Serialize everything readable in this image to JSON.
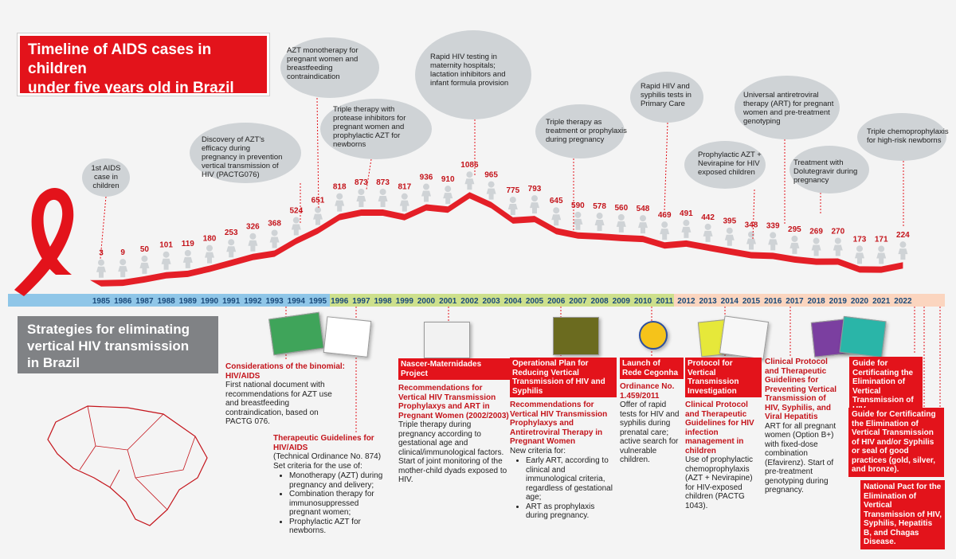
{
  "title": {
    "line1": "Timeline of AIDS cases in children",
    "line2": "under five years old in Brazil"
  },
  "strategies_title": {
    "line1": "Strategies for eliminating",
    "line2": "vertical HIV  transmission",
    "line3": "in Brazil"
  },
  "chart_data": {
    "type": "bar",
    "categories": [
      "1985",
      "1986",
      "1987",
      "1988",
      "1989",
      "1990",
      "1991",
      "1992",
      "1993",
      "1994",
      "1995",
      "1996",
      "1997",
      "1998",
      "1999",
      "2000",
      "2001",
      "2002",
      "2003",
      "2004",
      "2005",
      "2006",
      "2007",
      "2008",
      "2009",
      "2010",
      "2011",
      "2012",
      "2013",
      "2014",
      "2015",
      "2016",
      "2017",
      "2018",
      "2019",
      "2020",
      "2021",
      "2022"
    ],
    "values": [
      3,
      9,
      50,
      101,
      119,
      180,
      253,
      326,
      368,
      524,
      651,
      818,
      873,
      873,
      817,
      936,
      910,
      1086,
      965,
      775,
      793,
      645,
      590,
      578,
      560,
      548,
      469,
      491,
      442,
      395,
      348,
      339,
      295,
      269,
      270,
      173,
      171,
      224
    ],
    "ylim": [
      0,
      1200
    ]
  },
  "bubbles": [
    {
      "id": "b1",
      "lines": [
        "1st AIDS",
        "case in",
        "children"
      ]
    },
    {
      "id": "b2",
      "lines": [
        "Discovery of AZT's",
        "efficacy during",
        "pregnancy in prevention",
        "vertical transmission of",
        "HIV (PACTG076)"
      ]
    },
    {
      "id": "b3",
      "lines": [
        "AZT monotherapy for",
        "pregnant women and",
        "breastfeeding",
        "contraindication"
      ]
    },
    {
      "id": "b4",
      "lines": [
        "Triple therapy with",
        "protease inhibitors for",
        "pregnant women and",
        "prophylactic AZT for",
        "newborns"
      ]
    },
    {
      "id": "b5",
      "lines": [
        "Rapid HIV testing in",
        "maternity hospitals;",
        "lactation inhibitors and",
        "infant formula provision"
      ]
    },
    {
      "id": "b6",
      "lines": [
        "Triple therapy as",
        "treatment or prophylaxis",
        "during pregnancy"
      ]
    },
    {
      "id": "b7",
      "lines": [
        "Rapid HIV and",
        "syphilis tests in",
        "Primary Care"
      ]
    },
    {
      "id": "b8",
      "lines": [
        "Prophylactic AZT +",
        "Nevirapine for HIV",
        "exposed children"
      ]
    },
    {
      "id": "b9",
      "lines": [
        "Universal antiretroviral",
        "therapy (ART) for pregnant",
        "women and pre-treatment",
        "genotyping"
      ]
    },
    {
      "id": "b10",
      "lines": [
        "Treatment with",
        "Dolutegravir during",
        "pregnancy"
      ]
    },
    {
      "id": "b11",
      "lines": [
        "Triple chemoprophylaxis",
        "for high-risk newborns"
      ]
    }
  ],
  "annotations": {
    "a1": {
      "head": "Considerations of the binomial: HIV/AIDS",
      "body": "First national document with recommendations for AZT use and breastfeeding contraindication, based on PACTG 076."
    },
    "a2": {
      "head": "Therapeutic Guidelines for HIV/AIDS",
      "body": "(Technical Ordinance No. 874) Set criteria for the use of:",
      "items": [
        "Monotherapy (AZT) during pregnancy and delivery;",
        "Combination therapy for immunosuppressed pregnant women;",
        "Prophylactic AZT for newborns."
      ]
    },
    "a3": {
      "box": "Nascer-Maternidades Project",
      "head": "Recommendations for Vertical HIV Transmission Prophylaxys and ART in Pregnant Women (2002/2003)",
      "body": "Triple therapy during pregnancy according to gestational age and clinical/immunological factors.",
      "body2": "Start of joint monitoring of the mother-child dyads exposed to HIV."
    },
    "a4": {
      "box": "Operational Plan for Reducing Vertical Transmission of HIV and Syphilis",
      "head": "Recommendations for Vertical HIV Transmission Prophylaxys and Antiretroviral Therapy in Pregnant Women",
      "body": "New criteria for:",
      "items": [
        "Early ART, according to clinical and immunological criteria, regardless of gestational age;",
        "ART as prophylaxis during pregnancy."
      ]
    },
    "a5": {
      "box": "Launch of Rede Cegonha",
      "head": "Ordinance No. 1.459/2011",
      "body": "Offer of rapid tests for HIV and syphilis during prenatal care; active search for vulnerable children."
    },
    "a6": {
      "box": "Protocol for Vertical Transmission Investigation",
      "head": "Clinical Protocol and Therapeutic Guidelines for HIV infection management in children",
      "body": "Use of prophylactic chemoprophylaxis (AZT + Nevirapine) for HIV-exposed children (PACTG 1043)."
    },
    "a7": {
      "head": "Clinical Protocol and Therapeutic Guidelines for Preventing Vertical Transmission of HIV, Syphilis, and Viral Hepatitis",
      "body": "ART for all pregnant women (Option B+) with fixed-dose combination (Efavirenz). Start of pre-treatment genotyping during pregnancy."
    },
    "r1": "Guide for Certificating the Elimination of Vertical Transmission of HIV",
    "r2": "Guide for Certificating the Elimination of Vertical Transmission of HIV and/or Syphilis or seal of good practices (gold, silver, and bronze).",
    "r3": "National Pact for the Elimination of Vertical Transmission of HIV, Syphilis, Hepatitis B, and Chagas Disease."
  },
  "colors": {
    "accent": "#e3131b",
    "value_label": "#c4141b",
    "figure": "#cfd3d6",
    "bubble": "#cfd3d6",
    "axis_blue": "#8fc6e8",
    "axis_green": "#cde08c",
    "axis_peach": "#fbd5bf",
    "map": "#c4141b"
  }
}
